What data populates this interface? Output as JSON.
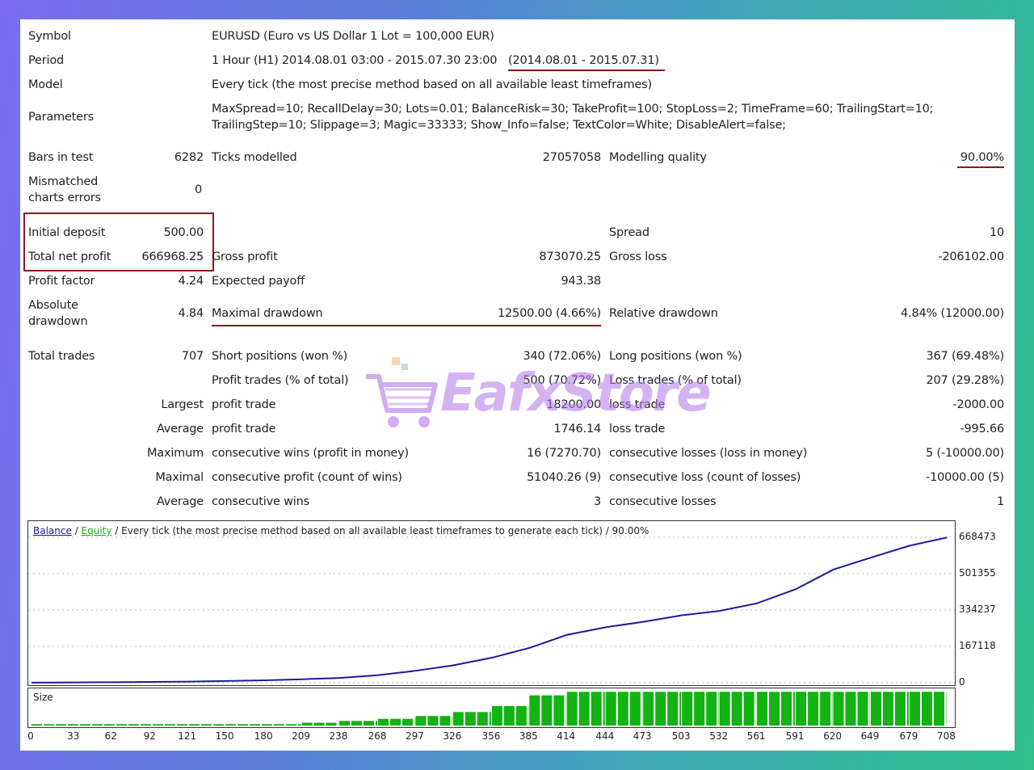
{
  "report": {
    "symbol_label": "Symbol",
    "symbol_value": "EURUSD (Euro vs US Dollar 1 Lot = 100,000 EUR)",
    "period_label": "Period",
    "period_value": "1 Hour (H1) 2014.08.01 03:00 - 2015.07.30 23:00",
    "period_range": "(2014.08.01 - 2015.07.31)",
    "model_label": "Model",
    "model_value": "Every tick (the most precise method based on all available least timeframes)",
    "parameters_label": "Parameters",
    "parameters_line1": "MaxSpread=10; RecallDelay=30; Lots=0.01; BalanceRisk=30; TakeProfit=100; StopLoss=2; TimeFrame=60; TrailingStart=10;",
    "parameters_line2": "TrailingStep=10; Slippage=3; Magic=33333; Show_Info=false; TextColor=White; DisableAlert=false;",
    "bars_label": "Bars in test",
    "bars_value": "6282",
    "ticks_label": "Ticks modelled",
    "ticks_value": "27057058",
    "quality_label": "Modelling quality",
    "quality_value": "90.00%",
    "mismatched_label1": "Mismatched",
    "mismatched_label2": "charts errors",
    "mismatched_value": "0",
    "deposit_label": "Initial deposit",
    "deposit_value": "500.00",
    "spread_label": "Spread",
    "spread_value": "10",
    "netprofit_label": "Total net profit",
    "netprofit_value": "666968.25",
    "grossprofit_label": "Gross profit",
    "grossprofit_value": "873070.25",
    "grossloss_label": "Gross loss",
    "grossloss_value": "-206102.00",
    "profitfactor_label": "Profit factor",
    "profitfactor_value": "4.24",
    "payoff_label": "Expected payoff",
    "payoff_value": "943.38",
    "absdd_label1": "Absolute",
    "absdd_label2": "drawdown",
    "absdd_value": "4.84",
    "maxdd_label": "Maximal drawdown",
    "maxdd_value": "12500.00 (4.66%)",
    "reldd_label": "Relative drawdown",
    "reldd_value": "4.84% (12000.00)",
    "totaltrades_label": "Total trades",
    "totaltrades_value": "707",
    "short_label": "Short positions (won %)",
    "short_value": "340 (72.06%)",
    "long_label": "Long positions (won %)",
    "long_value": "367 (69.48%)",
    "profittrades_label": "Profit trades (% of total)",
    "profittrades_value": "500 (70.72%)",
    "losstrades_label": "Loss trades (% of total)",
    "losstrades_value": "207 (29.28%)",
    "largest_label": "Largest",
    "largest_profit_label": "profit trade",
    "largest_profit_value": "18200.00",
    "largest_loss_label": "loss trade",
    "largest_loss_value": "-2000.00",
    "average_label": "Average",
    "average_profit_label": "profit trade",
    "average_profit_value": "1746.14",
    "average_loss_label": "loss trade",
    "average_loss_value": "-995.66",
    "maximum_label": "Maximum",
    "max_wins_label": "consecutive wins (profit in money)",
    "max_wins_value": "16 (7270.70)",
    "max_losses_label": "consecutive losses (loss in money)",
    "max_losses_value": "5 (-10000.00)",
    "maximal_label": "Maximal",
    "maximal_profit_label": "consecutive profit (count of wins)",
    "maximal_profit_value": "51040.26 (9)",
    "maximal_loss_label": "consecutive loss (count of losses)",
    "maximal_loss_value": "-10000.00 (5)",
    "average2_label": "Average",
    "avg_wins_label": "consecutive wins",
    "avg_wins_value": "3",
    "avg_losses_label": "consecutive losses",
    "avg_losses_value": "1"
  },
  "chart_legend": {
    "balance": "Balance",
    "sep1": " / ",
    "equity": "Equity",
    "rest": " / Every tick (the most precise method based on all available least timeframes to generate each tick) / 90.00%"
  },
  "size_label": "Size",
  "watermark": "EafxStore",
  "colors": {
    "accent_red": "#8b1a1a",
    "balance_line": "#1c1c9c",
    "equity_text": "#1fae1f",
    "size_bars": "#12b312"
  },
  "chart_data": {
    "type": "line",
    "series": [
      {
        "name": "Balance",
        "x": [
          0,
          33,
          62,
          92,
          121,
          150,
          180,
          209,
          238,
          268,
          297,
          326,
          356,
          385,
          414,
          444,
          473,
          503,
          532,
          561,
          591,
          620,
          649,
          679,
          708
        ],
        "values": [
          500,
          1500,
          2500,
          3500,
          5000,
          8000,
          11000,
          16000,
          22000,
          35000,
          55000,
          80000,
          115000,
          160000,
          220000,
          255000,
          280000,
          310000,
          330000,
          365000,
          430000,
          520000,
          575000,
          630000,
          667468
        ]
      }
    ],
    "y_ticks": [
      "0",
      "167118",
      "334237",
      "501355",
      "668473"
    ],
    "x_ticks": [
      "0",
      "33",
      "62",
      "92",
      "121",
      "150",
      "180",
      "209",
      "238",
      "268",
      "297",
      "326",
      "356",
      "385",
      "414",
      "444",
      "473",
      "503",
      "532",
      "561",
      "591",
      "620",
      "649",
      "679",
      "708"
    ],
    "ylim": [
      0,
      668473
    ],
    "xlim": [
      0,
      714
    ],
    "size_bars": {
      "x": [
        0,
        209,
        238,
        268,
        297,
        326,
        356,
        385,
        414,
        444,
        473,
        503,
        532,
        561,
        591,
        620,
        649,
        679,
        708
      ],
      "level": [
        0.0,
        0.04,
        0.08,
        0.13,
        0.19,
        0.27,
        0.38,
        0.55,
        0.85,
        0.95,
        0.95,
        0.95,
        0.95,
        0.95,
        0.95,
        0.95,
        0.95,
        0.95,
        0.95
      ]
    }
  }
}
